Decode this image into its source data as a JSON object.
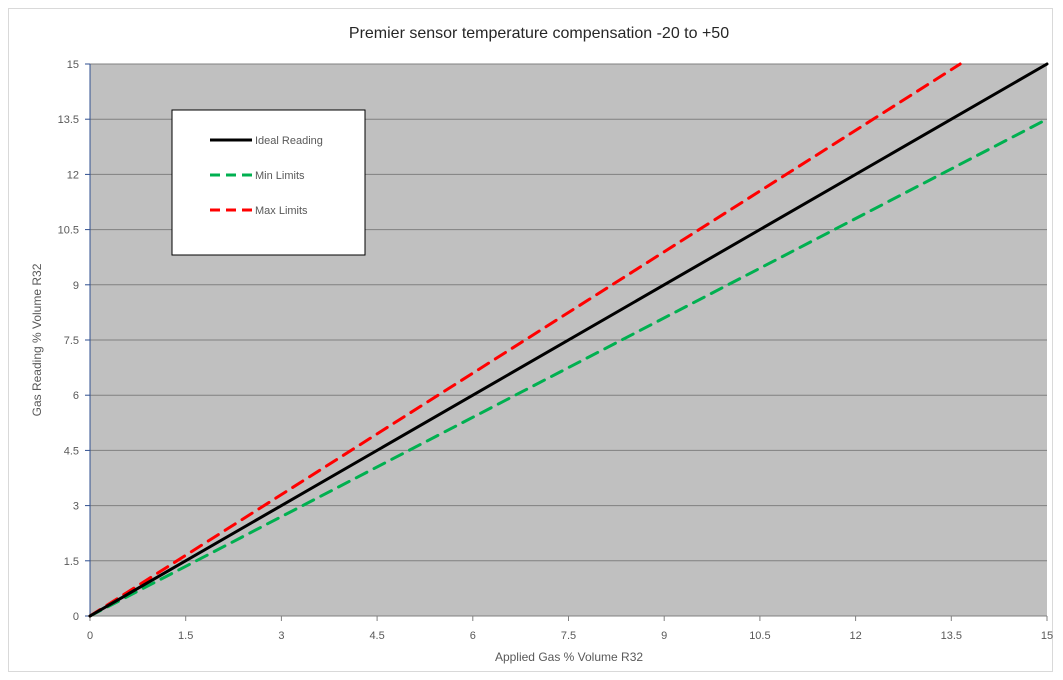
{
  "chart_data": {
    "type": "line",
    "title": "Premier sensor temperature compensation -20 to +50",
    "xlabel": "Applied Gas % Volume R32",
    "ylabel": "Gas Reading % Volume R32",
    "xlim": [
      0,
      15
    ],
    "ylim": [
      0,
      15
    ],
    "xticks": [
      "0",
      "1.5",
      "3",
      "4.5",
      "6",
      "7.5",
      "9",
      "10.5",
      "12",
      "13.5",
      "15"
    ],
    "yticks": [
      "0",
      "1.5",
      "3",
      "4.5",
      "6",
      "7.5",
      "9",
      "10.5",
      "12",
      "13.5",
      "15"
    ],
    "grid": "horizontal",
    "plot_background": "#c0c0c0",
    "legend_position": "top-left",
    "series": [
      {
        "name": "Ideal Reading",
        "color": "#000000",
        "style": "solid",
        "x": [
          0,
          15
        ],
        "y": [
          0,
          15
        ]
      },
      {
        "name": "Min Limits",
        "color": "#00b050",
        "style": "dashed",
        "x": [
          0,
          15
        ],
        "y": [
          0,
          13.5
        ]
      },
      {
        "name": "Max Limits",
        "color": "#ff0000",
        "style": "dashed",
        "x": [
          0,
          13.64
        ],
        "y": [
          0,
          15
        ]
      }
    ]
  }
}
